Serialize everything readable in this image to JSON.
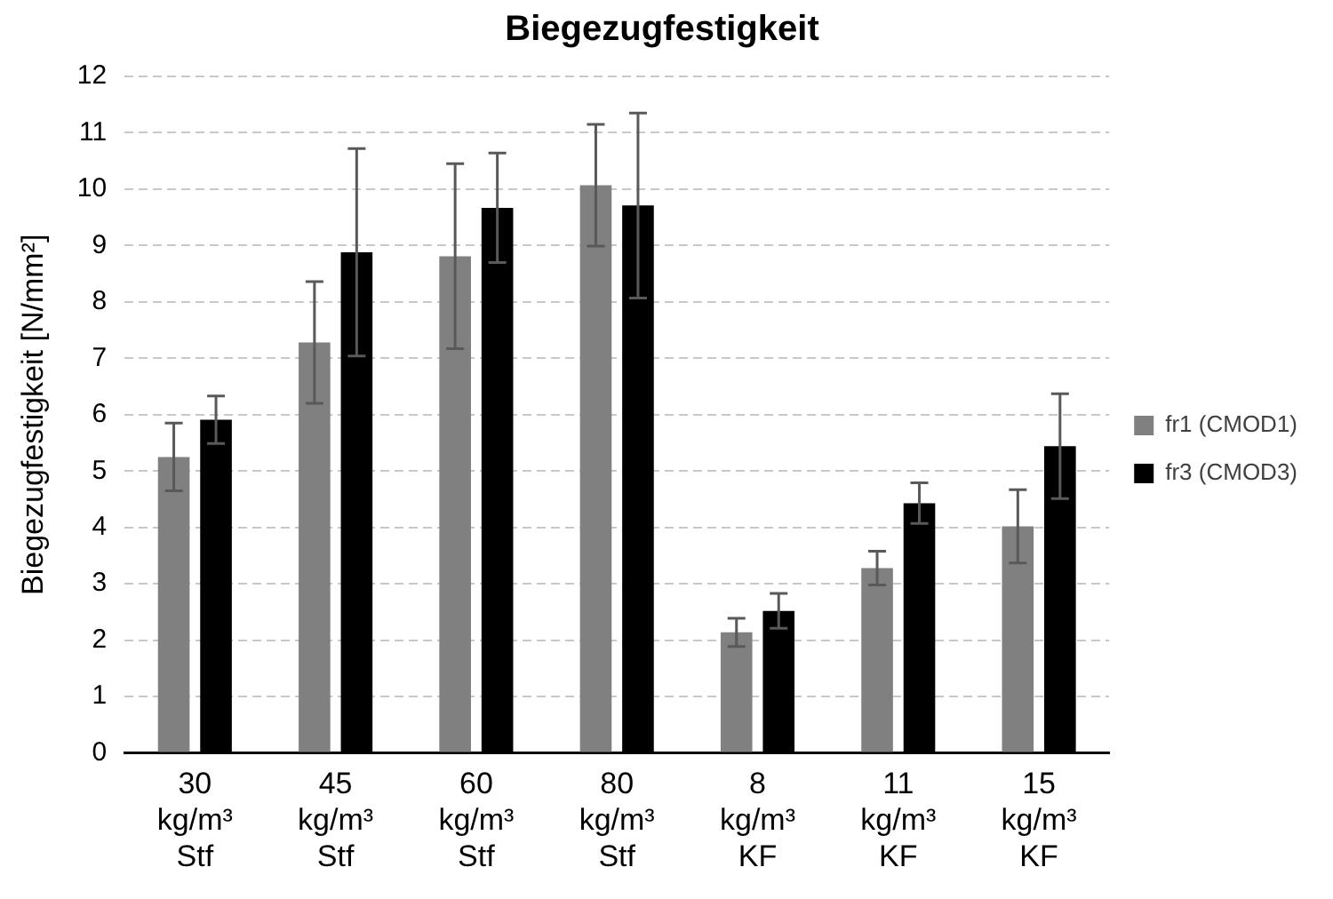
{
  "chart_data": {
    "type": "bar",
    "title": "Biegezugfestigkeit",
    "ylabel": "Biegezugfestigkeit [N/mm²]",
    "categories": [
      "30\nkg/m³\nStf",
      "45\nkg/m³\nStf",
      "60\nkg/m³\nStf",
      "80\nkg/m³\nStf",
      "8\nkg/m³\nKF",
      "11\nkg/m³\nKF",
      "15\nkg/m³\nKF"
    ],
    "series": [
      {
        "name": "fr1 (CMOD1)",
        "color": "#808080",
        "values": [
          5.25,
          7.28,
          8.81,
          10.07,
          2.14,
          3.28,
          4.02
        ],
        "errors": [
          0.6,
          1.08,
          1.64,
          1.08,
          0.25,
          0.3,
          0.65
        ]
      },
      {
        "name": "fr3 (CMOD3)",
        "color": "#000000",
        "values": [
          5.91,
          8.88,
          9.67,
          9.71,
          2.52,
          4.43,
          5.44
        ],
        "errors": [
          0.42,
          1.84,
          0.97,
          1.64,
          0.31,
          0.36,
          0.93
        ]
      }
    ],
    "ylim": [
      0,
      12
    ],
    "yticks": [
      0,
      1,
      2,
      3,
      4,
      5,
      6,
      7,
      8,
      9,
      10,
      11,
      12
    ],
    "grid": "y",
    "legend": "right"
  }
}
